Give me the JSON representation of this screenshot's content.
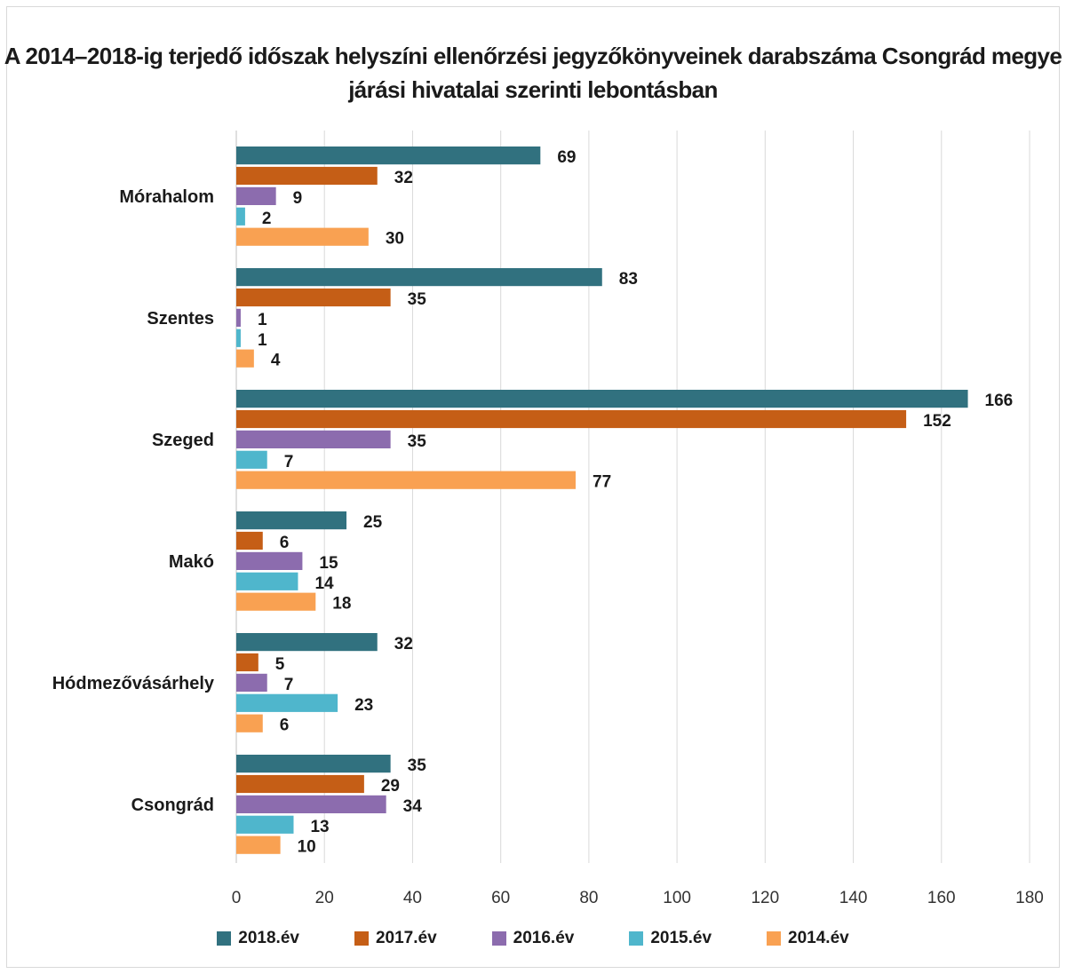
{
  "chart_data": {
    "type": "bar",
    "orientation": "horizontal",
    "title": "A 2014–2018-ig terjedő időszak helyszíni ellenőrzési jegyzőkönyveinek darabszáma Csongrád megye járási hivatalai szerinti lebontásban",
    "categories": [
      "Mórahalom",
      "Szentes",
      "Szeged",
      "Makó",
      "Hódmezővásárhely",
      "Csongrád"
    ],
    "series": [
      {
        "name": "2018.év",
        "color": "#31717f",
        "values": [
          69,
          83,
          166,
          25,
          32,
          35
        ]
      },
      {
        "name": "2017.év",
        "color": "#c55e16",
        "values": [
          32,
          35,
          152,
          6,
          5,
          29
        ]
      },
      {
        "name": "2016.év",
        "color": "#8c6cae",
        "values": [
          9,
          1,
          35,
          15,
          7,
          34
        ]
      },
      {
        "name": "2015.év",
        "color": "#4fb6cc",
        "values": [
          2,
          1,
          7,
          14,
          23,
          13
        ]
      },
      {
        "name": "2014.év",
        "color": "#f9a152",
        "values": [
          30,
          4,
          77,
          18,
          6,
          10
        ]
      }
    ],
    "xlim": [
      0,
      180
    ],
    "xticks": [
      "0",
      "20",
      "40",
      "60",
      "80",
      "100",
      "120",
      "140",
      "160",
      "180"
    ],
    "grid": true,
    "legend_position": "bottom",
    "xlabel": "",
    "ylabel": ""
  }
}
